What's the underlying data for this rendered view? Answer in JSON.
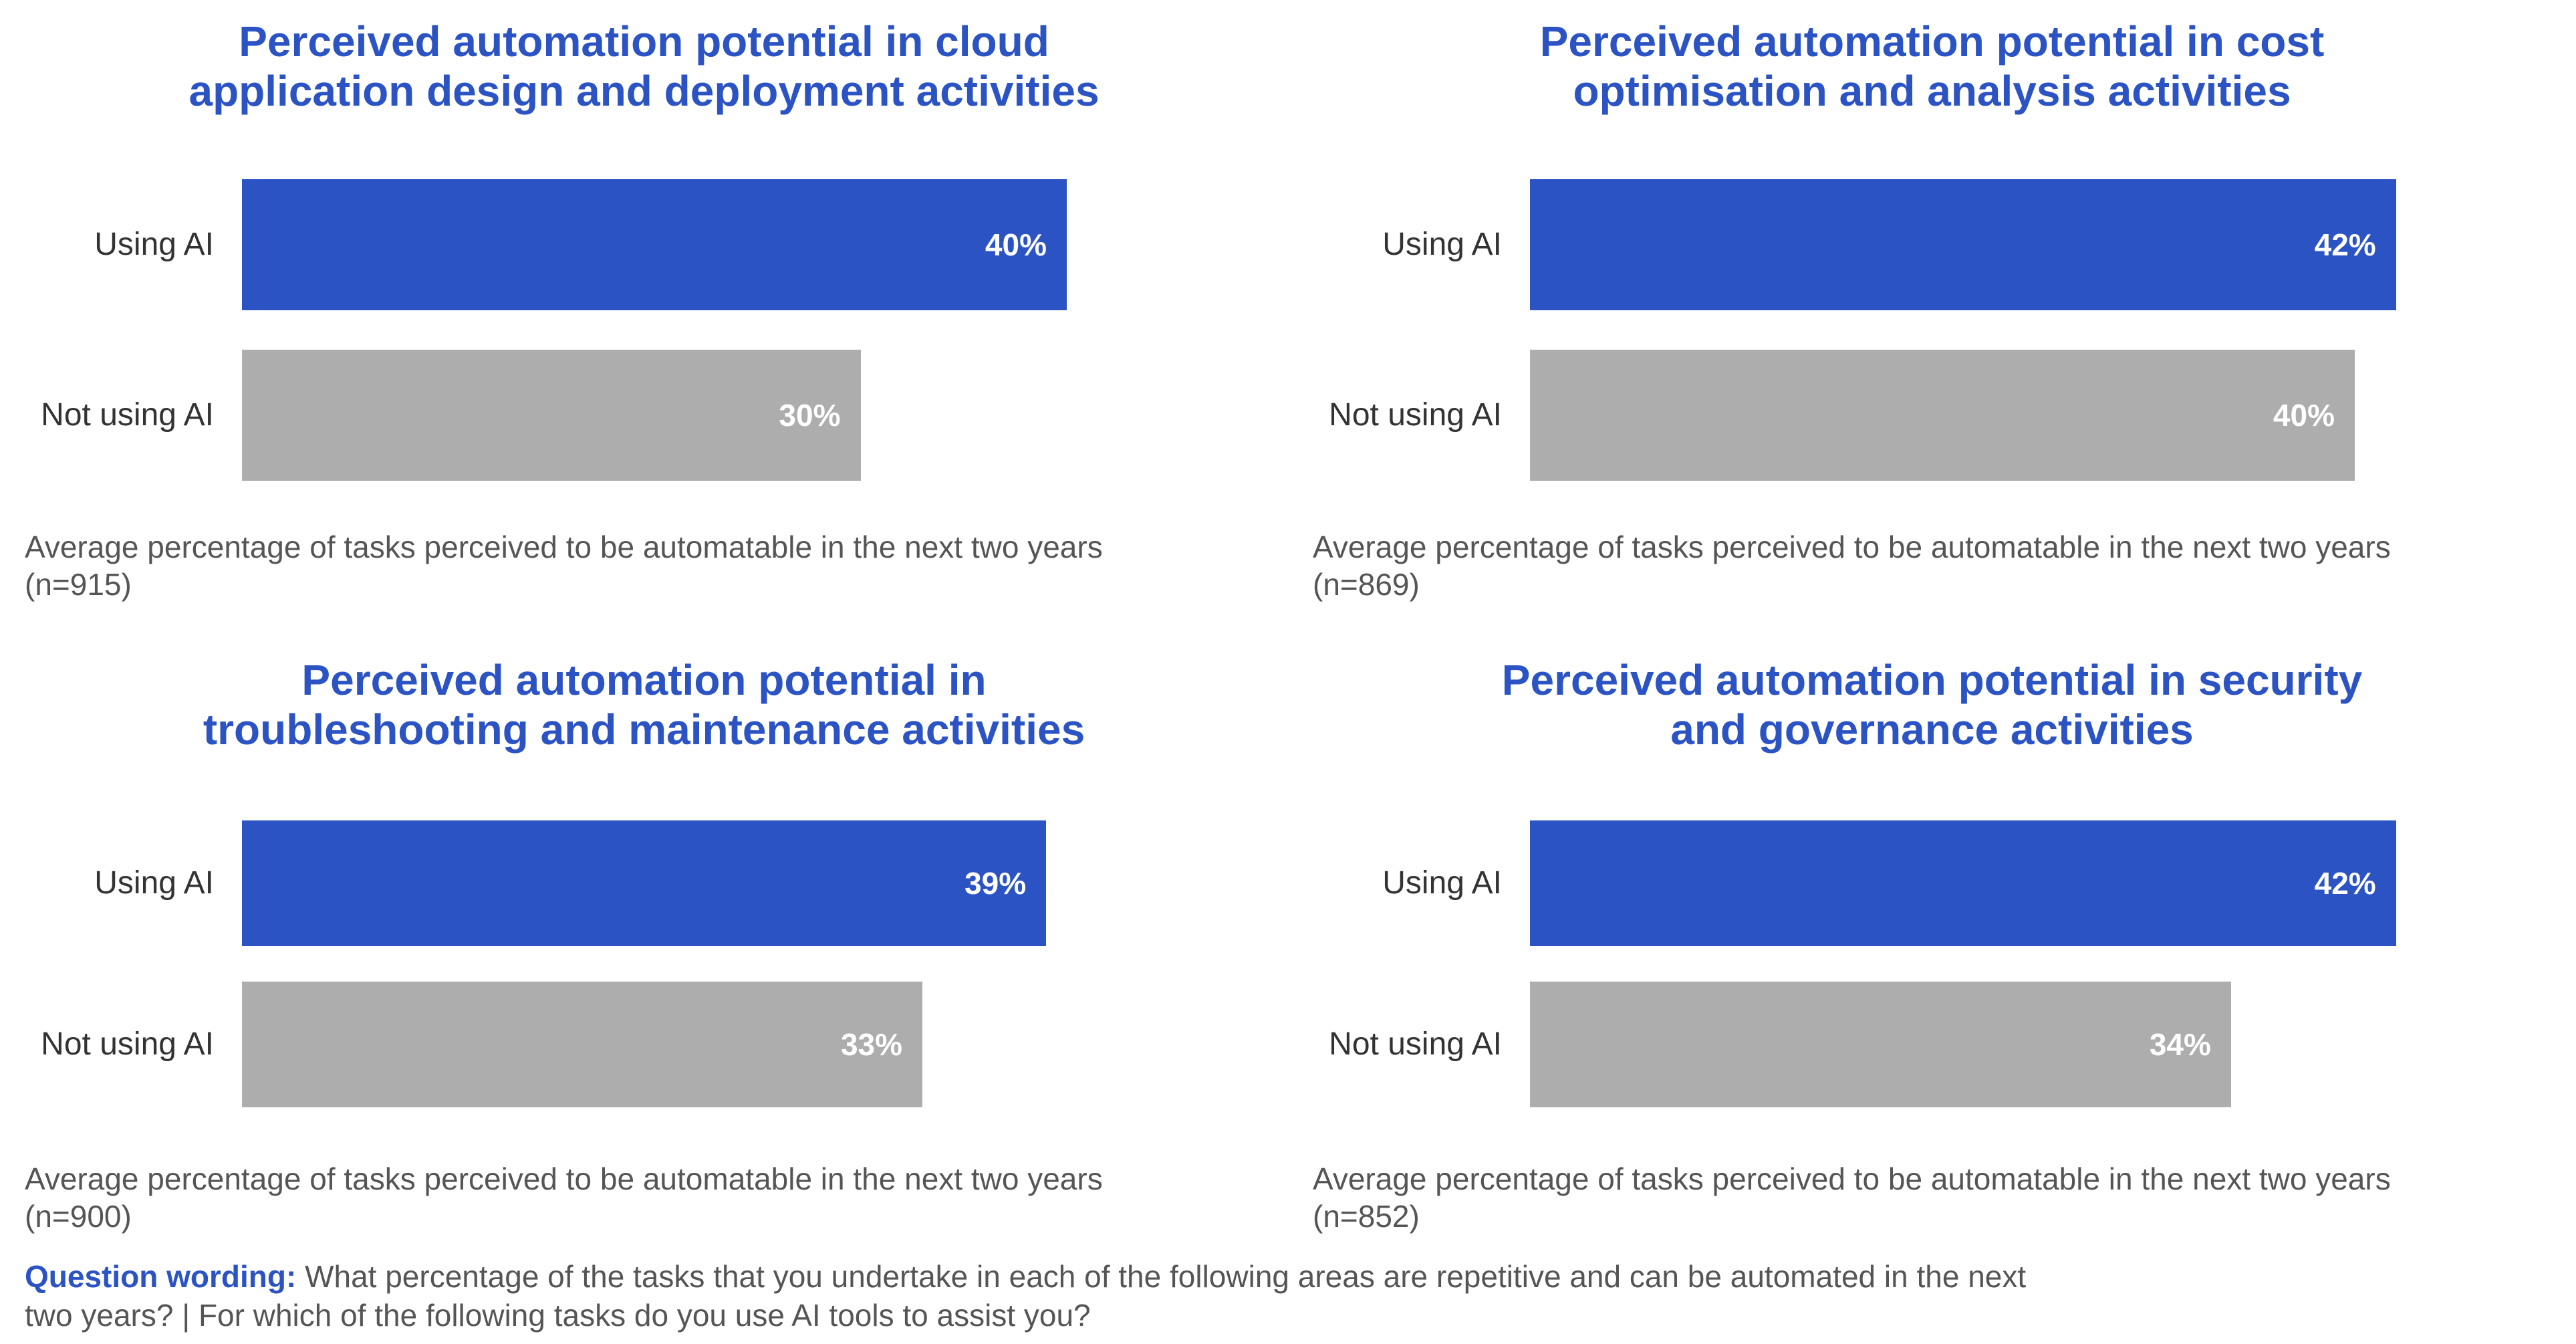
{
  "colors": {
    "title": "#2B53C4",
    "using_ai": "#2B53C4",
    "not_using_ai": "#ADADAD",
    "text": "#333333",
    "subtext": "#555555"
  },
  "chart_data": [
    {
      "type": "bar",
      "orientation": "horizontal",
      "title": "Perceived automation potential in cloud\napplication design and deployment activities",
      "categories": [
        "Using AI",
        "Not using AI"
      ],
      "values": [
        40,
        30
      ],
      "value_labels": [
        "40%",
        "30%"
      ],
      "xlim": [
        0,
        50
      ],
      "grid": false,
      "subtitle_line1": "Average percentage of tasks perceived to be automatable in the next two years",
      "subtitle_line2": "(n=915)"
    },
    {
      "type": "bar",
      "orientation": "horizontal",
      "title": "Perceived automation potential in cost\noptimisation and analysis activities",
      "categories": [
        "Using AI",
        "Not using AI"
      ],
      "values": [
        42,
        40
      ],
      "value_labels": [
        "42%",
        "40%"
      ],
      "xlim": [
        0,
        50
      ],
      "grid": false,
      "subtitle_line1": "Average percentage of tasks perceived to be automatable in the next two years",
      "subtitle_line2": "(n=869)"
    },
    {
      "type": "bar",
      "orientation": "horizontal",
      "title": "Perceived automation potential in\ntroubleshooting and maintenance activities",
      "categories": [
        "Using AI",
        "Not using AI"
      ],
      "values": [
        39,
        33
      ],
      "value_labels": [
        "39%",
        "33%"
      ],
      "xlim": [
        0,
        50
      ],
      "grid": false,
      "subtitle_line1": "Average percentage of tasks perceived to be automatable in the next two years",
      "subtitle_line2": "(n=900)"
    },
    {
      "type": "bar",
      "orientation": "horizontal",
      "title": "Perceived automation potential in security\nand governance activities",
      "categories": [
        "Using AI",
        "Not using AI"
      ],
      "values": [
        42,
        34
      ],
      "value_labels": [
        "42%",
        "34%"
      ],
      "xlim": [
        0,
        50
      ],
      "grid": false,
      "subtitle_line1": "Average percentage of tasks perceived to be automatable in the next two years",
      "subtitle_line2": "(n=852)"
    }
  ],
  "footnote": {
    "label": "Question wording:",
    "line1": "What percentage of the tasks that you undertake in each of the following areas are repetitive and can be automated in the next",
    "line2": "two years? | For which of the following tasks do you use AI tools to assist you?"
  }
}
